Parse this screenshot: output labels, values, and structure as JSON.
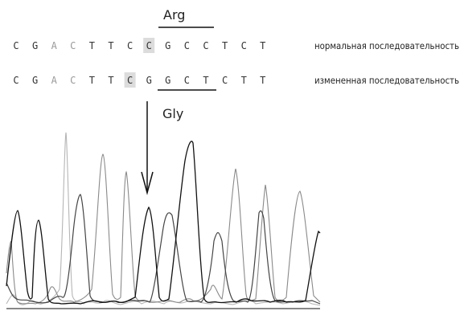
{
  "codon_labels": {
    "original": "Arg",
    "mutated": "Gly"
  },
  "sequences": {
    "normal": {
      "bases": [
        "C",
        "G",
        "A",
        "C",
        "T",
        "T",
        "C",
        "C",
        "G",
        "C",
        "C",
        "T",
        "C",
        "T"
      ],
      "label": "нормальная последовательность",
      "highlight_index": 7
    },
    "mutated": {
      "bases": [
        "C",
        "G",
        "A",
        "C",
        "T",
        "T",
        "C",
        "G",
        "G",
        "C",
        "T",
        "C",
        "T",
        "T"
      ],
      "label": "измененная последовательность",
      "highlight_index": 6
    }
  },
  "colors": {
    "text": "#333333",
    "faded_base": "#9a9a9a",
    "highlight": "#dcdcdc",
    "trace_black": "#111111",
    "trace_dark": "#444444",
    "trace_gray": "#8a8a8a",
    "trace_light": "#b5b5b5"
  }
}
